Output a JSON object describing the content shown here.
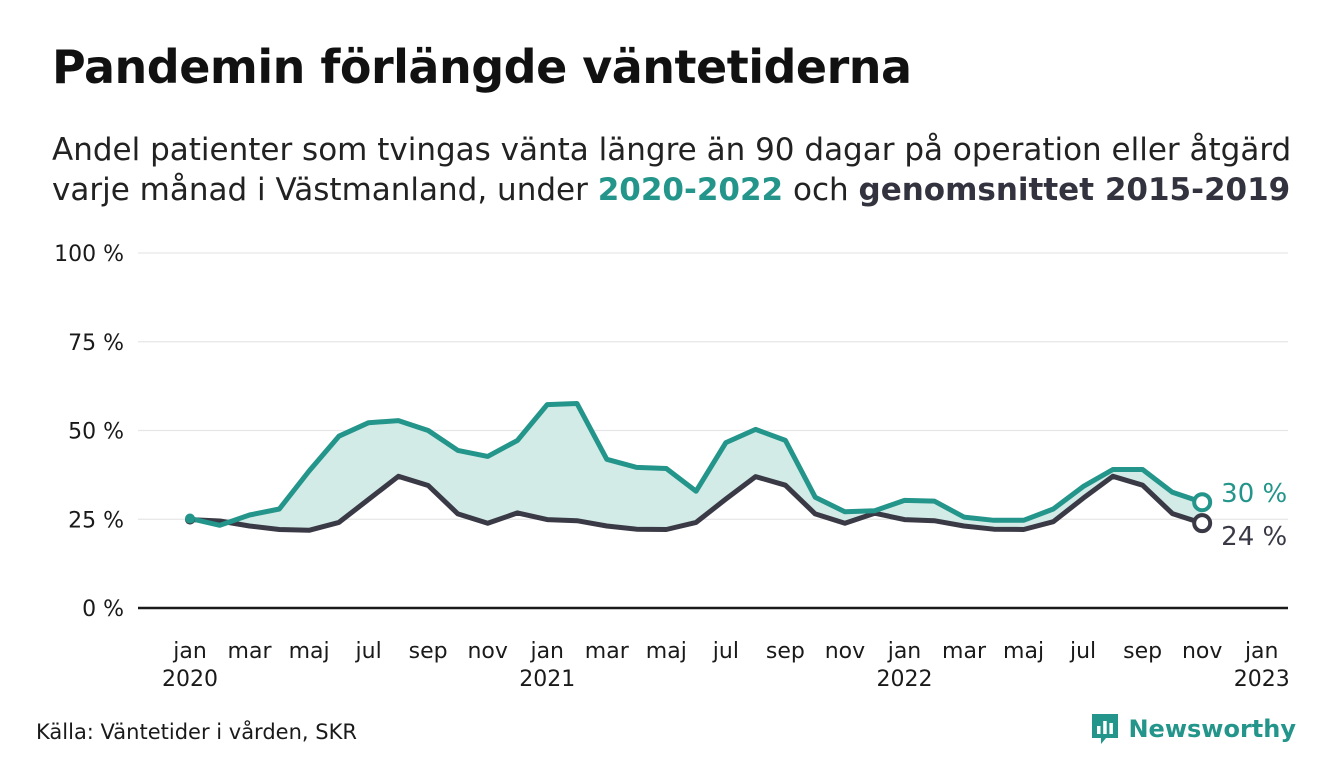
{
  "title": "Pandemin förlängde väntetiderna",
  "subtitle": {
    "line1": "Andel patienter som tvingas vänta längre än 90 dagar på operation eller åtgärd",
    "line2_prefix": "varje månad i Västmanland, under ",
    "series1_label": "2020-2022",
    "connector": " och ",
    "series2_label": "genomsnittet 2015-2019"
  },
  "source": "Källa: Väntetider i vården, SKR",
  "logo": {
    "text": "Newsworthy",
    "icon": "bar-chart-speech-bubble-icon"
  },
  "colors": {
    "series1": "#23958a",
    "series2": "#3a3a46",
    "fill": "#d2ebe7",
    "grid": "#e6e6e6"
  },
  "chart_data": {
    "type": "line",
    "x_unit": "month",
    "x_start": "2020-01",
    "ylim": [
      0,
      100
    ],
    "y_ticks": [
      "0 %",
      "25 %",
      "50 %",
      "75 %",
      "100 %"
    ],
    "x_ticks": [
      {
        "month": "jan",
        "year": "2020"
      },
      {
        "month": "mar",
        "year": ""
      },
      {
        "month": "maj",
        "year": ""
      },
      {
        "month": "jul",
        "year": ""
      },
      {
        "month": "sep",
        "year": ""
      },
      {
        "month": "nov",
        "year": ""
      },
      {
        "month": "jan",
        "year": "2021"
      },
      {
        "month": "mar",
        "year": ""
      },
      {
        "month": "maj",
        "year": ""
      },
      {
        "month": "jul",
        "year": ""
      },
      {
        "month": "sep",
        "year": ""
      },
      {
        "month": "nov",
        "year": ""
      },
      {
        "month": "jan",
        "year": "2022"
      },
      {
        "month": "mar",
        "year": ""
      },
      {
        "month": "maj",
        "year": ""
      },
      {
        "month": "jul",
        "year": ""
      },
      {
        "month": "sep",
        "year": ""
      },
      {
        "month": "nov",
        "year": ""
      },
      {
        "month": "jan",
        "year": "2023"
      }
    ],
    "series": [
      {
        "name": "2020-2022",
        "values": [
          25.2,
          23.3,
          26.2,
          27.9,
          38.6,
          48.4,
          52.2,
          52.8,
          50.0,
          44.4,
          42.7,
          47.2,
          57.3,
          57.6,
          41.9,
          39.6,
          39.3,
          32.9,
          46.6,
          50.3,
          47.2,
          31.2,
          27.1,
          27.4,
          30.3,
          30.1,
          25.6,
          24.7,
          24.7,
          27.9,
          34.2,
          39.0,
          39.0,
          32.6,
          29.8
        ],
        "end_label": "30 %"
      },
      {
        "name": "genomsnittet 2015-2019",
        "values": [
          24.9,
          24.5,
          23.1,
          22.1,
          21.9,
          24.1,
          30.6,
          37.1,
          34.5,
          26.5,
          23.9,
          26.8,
          24.9,
          24.6,
          23.1,
          22.2,
          22.1,
          24.1,
          30.7,
          37.0,
          34.6,
          26.5,
          23.9,
          26.7,
          24.9,
          24.6,
          23.1,
          22.2,
          22.1,
          24.3,
          30.9,
          37.1,
          34.6,
          26.6,
          23.9
        ],
        "end_label": "24 %"
      }
    ]
  }
}
